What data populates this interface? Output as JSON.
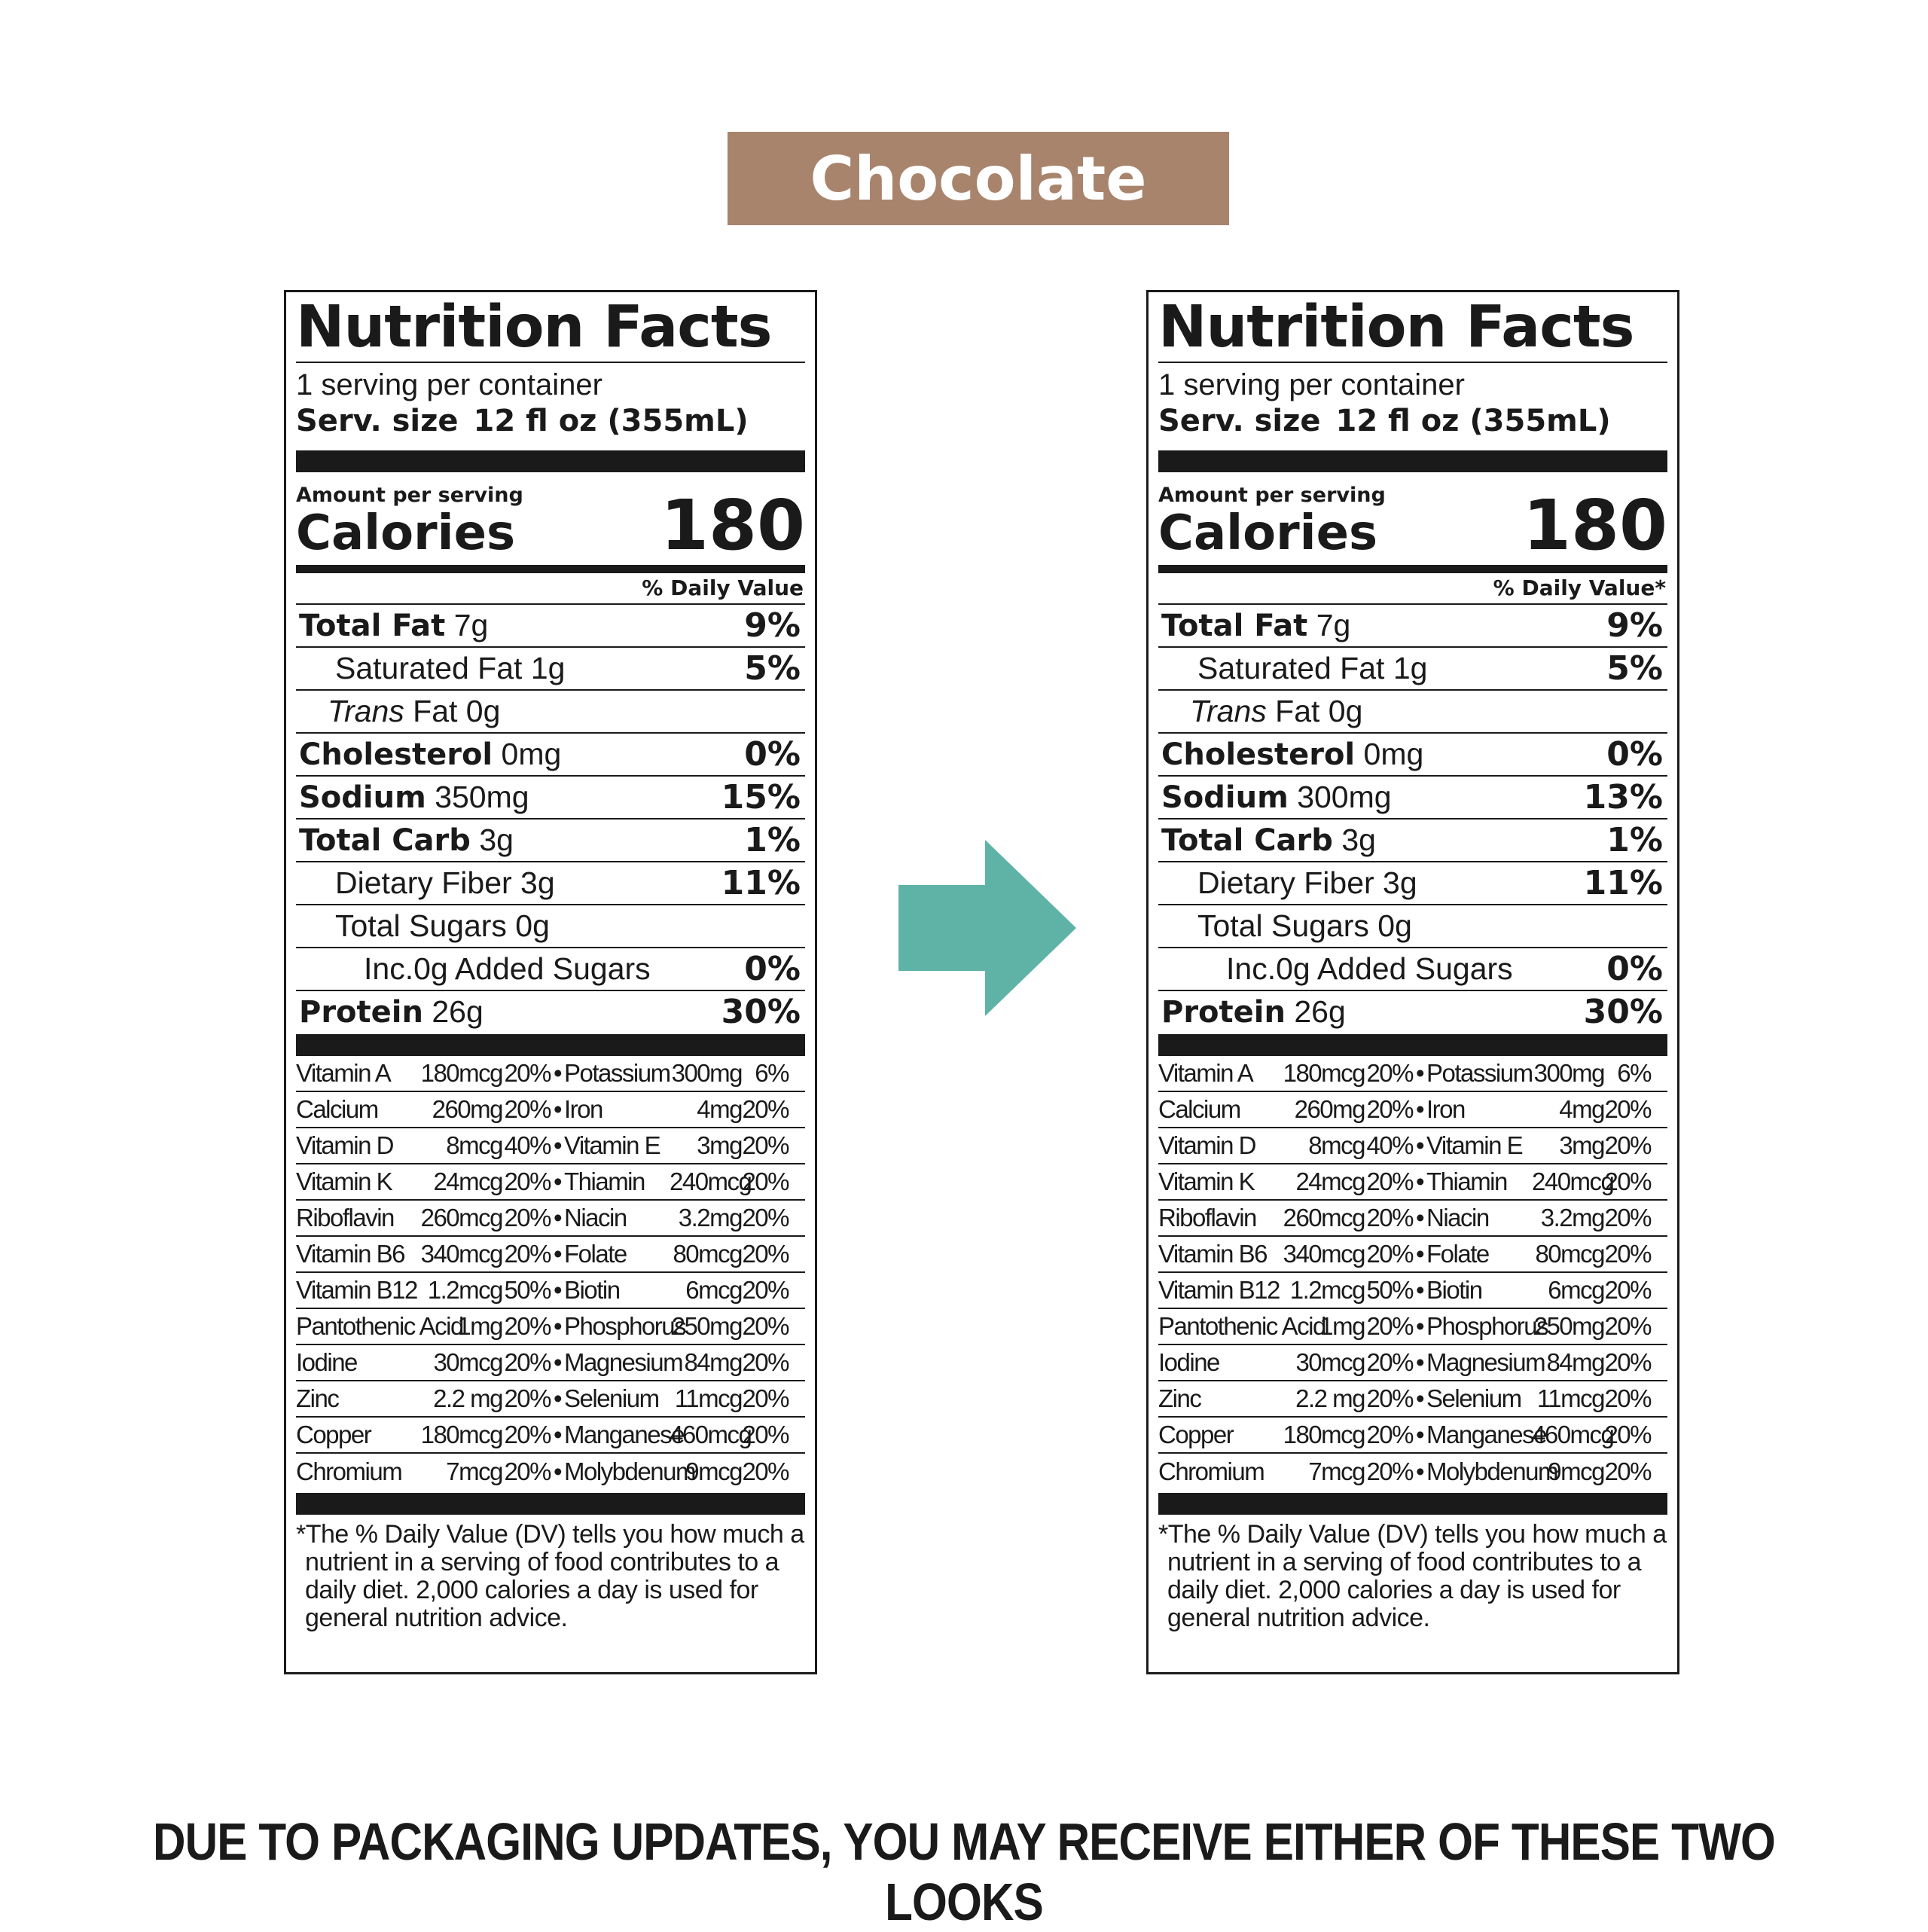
{
  "flavor": {
    "label": "Chocolate",
    "color": "#a8846c"
  },
  "arrow_color": "#5fb3a6",
  "notice": "DUE TO PACKAGING UPDATES, YOU MAY RECEIVE EITHER OF THESE TWO LOOKS",
  "labels": [
    {
      "title": "Nutrition Facts",
      "servings": "1 serving per container",
      "serv_size_label": "Serv. size",
      "serv_size_value": "12 fl oz (355mL)",
      "amount_per": "Amount per serving",
      "calories_label": "Calories",
      "calories_value": "180",
      "dv_header": "% Daily Value",
      "nutrients": [
        {
          "bold": "Total Fat",
          "rest": " 7g",
          "pct": "9%"
        },
        {
          "plain": "Saturated Fat 1g",
          "pct": "5%",
          "indent": 1
        },
        {
          "italic": "Trans",
          "rest": " Fat 0g",
          "pct": "",
          "indent": "t"
        },
        {
          "bold": "Cholesterol",
          "rest": " 0mg",
          "pct": "0%"
        },
        {
          "bold": "Sodium",
          "rest": " 350mg",
          "pct": "15%"
        },
        {
          "bold": "Total Carb",
          "rest": " 3g",
          "pct": "1%"
        },
        {
          "plain": "Dietary Fiber 3g",
          "pct": "11%",
          "indent": 1
        },
        {
          "plain": "Total Sugars 0g",
          "pct": "",
          "indent": 1
        },
        {
          "plain": "Inc.0g Added Sugars",
          "pct": "0%",
          "indent": 2
        },
        {
          "bold": "Protein",
          "rest": " 26g",
          "pct": "30%"
        }
      ],
      "vitamins": [
        [
          "Vitamin A",
          "180mcg",
          "20%",
          "Potassium",
          "300mg",
          "6%"
        ],
        [
          "Calcium",
          "260mg",
          "20%",
          "Iron",
          "4mg",
          "20%"
        ],
        [
          "Vitamin D",
          "8mcg",
          "40%",
          "Vitamin E",
          "3mg",
          "20%"
        ],
        [
          "Vitamin K",
          "24mcg",
          "20%",
          "Thiamin",
          "240mcg",
          "20%"
        ],
        [
          "Riboflavin",
          "260mcg",
          "20%",
          "Niacin",
          "3.2mg",
          "20%"
        ],
        [
          "Vitamin B6",
          "340mcg",
          "20%",
          "Folate",
          "80mcg",
          "20%"
        ],
        [
          "Vitamin B12",
          "1.2mcg",
          "50%",
          "Biotin",
          "6mcg",
          "20%"
        ],
        [
          "Pantothenic Acid",
          "1mg",
          "20%",
          "Phosphorus",
          "250mg",
          "20%"
        ],
        [
          "Iodine",
          "30mcg",
          "20%",
          "Magnesium",
          "84mg",
          "20%"
        ],
        [
          "Zinc",
          "2.2 mg",
          "20%",
          "Selenium",
          "11mcg",
          "20%"
        ],
        [
          "Copper",
          "180mcg",
          "20%",
          "Manganese",
          "460mcg",
          "20%"
        ],
        [
          "Chromium",
          "7mcg",
          "20%",
          "Molybdenum",
          "9mcg",
          "20%"
        ]
      ],
      "footnote": "*The % Daily Value (DV) tells you how much a nutrient in a serving of food contributes to a daily diet. 2,000 calories a day is used for general nutrition advice."
    },
    {
      "title": "Nutrition Facts",
      "servings": "1 serving per container",
      "serv_size_label": "Serv. size",
      "serv_size_value": "12 fl oz (355mL)",
      "amount_per": "Amount per serving",
      "calories_label": "Calories",
      "calories_value": "180",
      "dv_header": "% Daily Value*",
      "nutrients": [
        {
          "bold": "Total Fat",
          "rest": " 7g",
          "pct": "9%"
        },
        {
          "plain": "Saturated Fat 1g",
          "pct": "5%",
          "indent": 1
        },
        {
          "italic": "Trans",
          "rest": " Fat 0g",
          "pct": "",
          "indent": "t"
        },
        {
          "bold": "Cholesterol",
          "rest": " 0mg",
          "pct": "0%"
        },
        {
          "bold": "Sodium",
          "rest": " 300mg",
          "pct": "13%"
        },
        {
          "bold": "Total Carb",
          "rest": " 3g",
          "pct": "1%"
        },
        {
          "plain": "Dietary Fiber 3g",
          "pct": "11%",
          "indent": 1
        },
        {
          "plain": "Total Sugars 0g",
          "pct": "",
          "indent": 1
        },
        {
          "plain": "Inc.0g Added Sugars",
          "pct": "0%",
          "indent": 2
        },
        {
          "bold": "Protein",
          "rest": " 26g",
          "pct": "30%"
        }
      ],
      "vitamins": [
        [
          "Vitamin A",
          "180mcg",
          "20%",
          "Potassium",
          "300mg",
          "6%"
        ],
        [
          "Calcium",
          "260mg",
          "20%",
          "Iron",
          "4mg",
          "20%"
        ],
        [
          "Vitamin D",
          "8mcg",
          "40%",
          "Vitamin E",
          "3mg",
          "20%"
        ],
        [
          "Vitamin K",
          "24mcg",
          "20%",
          "Thiamin",
          "240mcg",
          "20%"
        ],
        [
          "Riboflavin",
          "260mcg",
          "20%",
          "Niacin",
          "3.2mg",
          "20%"
        ],
        [
          "Vitamin B6",
          "340mcg",
          "20%",
          "Folate",
          "80mcg",
          "20%"
        ],
        [
          "Vitamin B12",
          "1.2mcg",
          "50%",
          "Biotin",
          "6mcg",
          "20%"
        ],
        [
          "Pantothenic Acid",
          "1mg",
          "20%",
          "Phosphorus",
          "250mg",
          "20%"
        ],
        [
          "Iodine",
          "30mcg",
          "20%",
          "Magnesium",
          "84mg",
          "20%"
        ],
        [
          "Zinc",
          "2.2 mg",
          "20%",
          "Selenium",
          "11mcg",
          "20%"
        ],
        [
          "Copper",
          "180mcg",
          "20%",
          "Manganese",
          "460mcg",
          "20%"
        ],
        [
          "Chromium",
          "7mcg",
          "20%",
          "Molybdenum",
          "9mcg",
          "20%"
        ]
      ],
      "footnote": "*The % Daily Value (DV) tells you how much a nutrient in a serving of food contributes to a daily diet. 2,000 calories a day is used for general nutrition advice."
    }
  ]
}
